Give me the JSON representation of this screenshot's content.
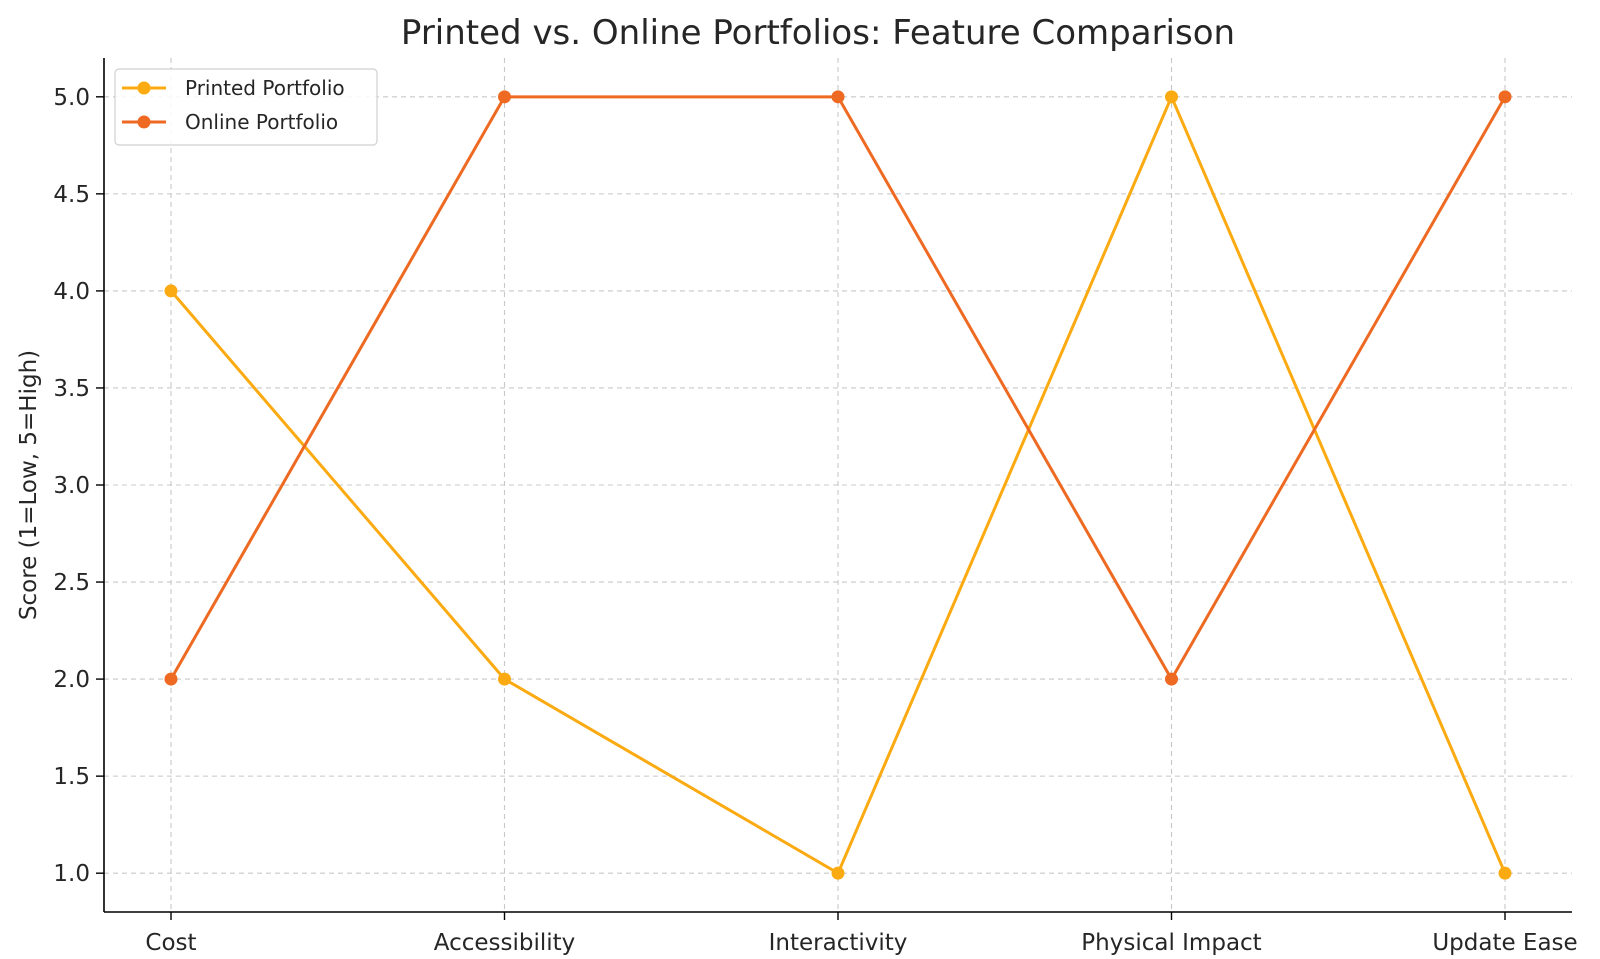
{
  "chart_data": {
    "type": "line",
    "title": "Printed vs. Online Portfolios: Feature Comparison",
    "xlabel": "",
    "ylabel": "Score (1=Low, 5=High)",
    "categories": [
      "Cost",
      "Accessibility",
      "Interactivity",
      "Physical Impact",
      "Update Ease"
    ],
    "ylim": [
      0.8,
      5.2
    ],
    "yticks": [
      "1.0",
      "1.5",
      "2.0",
      "2.5",
      "3.0",
      "3.5",
      "4.0",
      "4.5",
      "5.0"
    ],
    "grid": true,
    "legend_position": "top-left",
    "series": [
      {
        "name": "Printed Portfolio",
        "values": [
          4,
          2,
          1,
          5,
          1
        ],
        "color": "#FBAA12"
      },
      {
        "name": "Online Portfolio",
        "values": [
          2,
          5,
          5,
          2,
          5
        ],
        "color": "#EE6A22"
      }
    ]
  }
}
